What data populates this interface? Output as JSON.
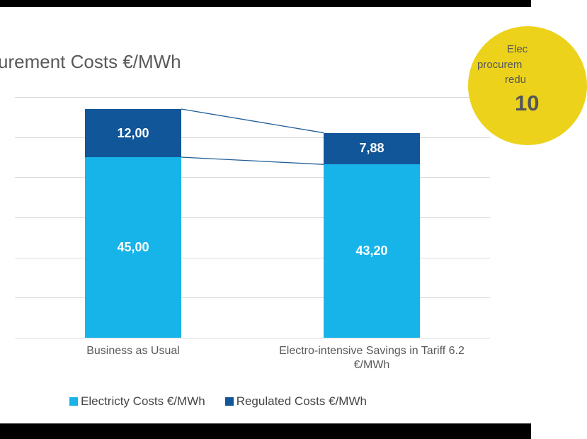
{
  "title": "urement Costs €/MWh",
  "colors": {
    "electricity_blue": "#17B4E9",
    "regulated_blue": "#115698",
    "gridline": "#D9D9D9",
    "text_gray": "#595959",
    "connector": "#1F5C97",
    "badge_yellow": "#ECD21B",
    "letterbox": "#000000",
    "value_label_white": "#FFFFFF"
  },
  "chart_data": {
    "type": "bar",
    "stacked": true,
    "title": "urement Costs €/MWh",
    "categories": [
      "Business as Usual",
      "Electro-intensive Savings in Tariff 6.2 €/MWh"
    ],
    "series": [
      {
        "name": "Electricty Costs €/MWh",
        "values": [
          45.0,
          43.2
        ],
        "labels": [
          "45,00",
          "43,20"
        ],
        "color": "#17B4E9"
      },
      {
        "name": "Regulated Costs €/MWh",
        "values": [
          12.0,
          7.88
        ],
        "labels": [
          "12,00",
          "7,88"
        ],
        "color": "#115698"
      }
    ],
    "ylim": [
      0,
      60
    ],
    "gridline_step": 10,
    "grid": true,
    "y_axis_labels_visible": false,
    "legend_position": "bottom",
    "connector_lines": true
  },
  "xaxis": {
    "labels": [
      {
        "lines": [
          "Business as Usual"
        ]
      },
      {
        "lines": [
          "Electro-intensive Savings in Tariff 6.2",
          "€/MWh"
        ]
      }
    ]
  },
  "legend": {
    "items": [
      {
        "label": "Electricty Costs €/MWh",
        "color": "#17B4E9"
      },
      {
        "label": "Regulated Costs €/MWh",
        "color": "#115698"
      }
    ]
  },
  "badge": {
    "visible_text_lines": [
      "Elec",
      "procurem",
      "redu"
    ],
    "big_value": "10",
    "fill": "#ECD21B"
  }
}
